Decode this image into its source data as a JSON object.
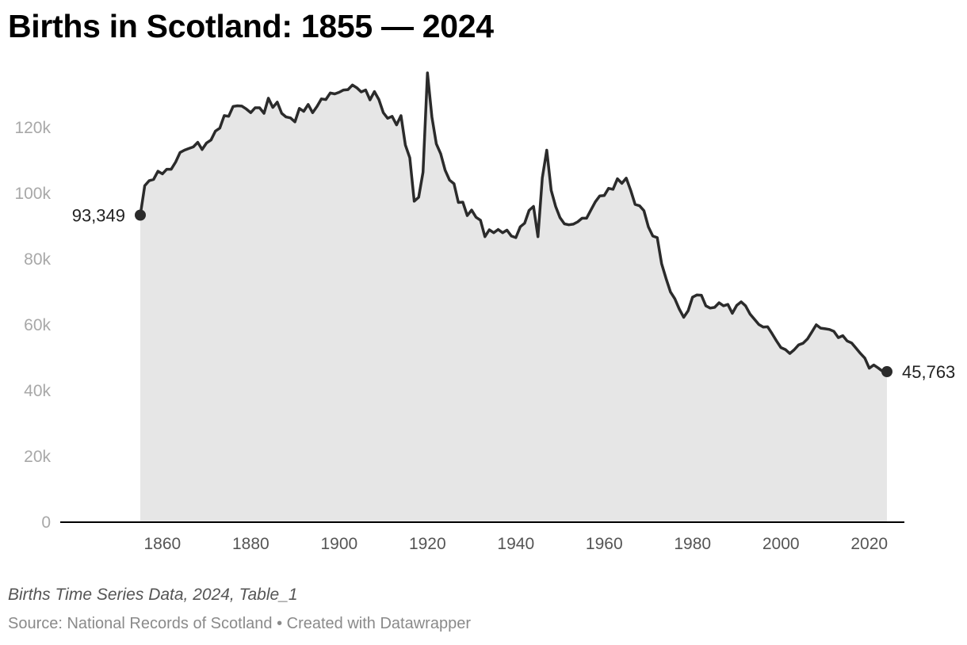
{
  "title": "Births in Scotland: 1855 — 2024",
  "notes": "Births Time Series Data, 2024, Table_1",
  "source": {
    "label": "Source: National Records of Scotland",
    "separator": " • ",
    "credit": "Created with Datawrapper"
  },
  "colors": {
    "line": "#2b2b2b",
    "area": "#e6e6e6",
    "axis": "#000000",
    "tick_y": "#a8a8a8",
    "tick_x": "#555555"
  },
  "chart_data": {
    "type": "area",
    "title": "Births in Scotland: 1855 — 2024",
    "xlabel": "",
    "ylabel": "",
    "xlim": [
      1855,
      2024
    ],
    "ylim": [
      0,
      130000
    ],
    "x_ticks": [
      1860,
      1880,
      1900,
      1920,
      1940,
      1960,
      1980,
      2000,
      2020
    ],
    "y_ticks": [
      {
        "value": 0,
        "label": "0"
      },
      {
        "value": 20000,
        "label": "20k"
      },
      {
        "value": 40000,
        "label": "40k"
      },
      {
        "value": 60000,
        "label": "60k"
      },
      {
        "value": 80000,
        "label": "80k"
      },
      {
        "value": 100000,
        "label": "100k"
      },
      {
        "value": 120000,
        "label": "120k"
      }
    ],
    "grid": false,
    "legend": "none",
    "annotations": [
      {
        "x": 1855,
        "y": 93349,
        "label": "93,349",
        "side": "left"
      },
      {
        "x": 2024,
        "y": 45763,
        "label": "45,763",
        "side": "right"
      }
    ],
    "series": [
      {
        "x": [
          1855,
          1856,
          1857,
          1858,
          1859,
          1860,
          1861,
          1862,
          1863,
          1864,
          1865,
          1866,
          1867,
          1868,
          1869,
          1870,
          1871,
          1872,
          1873,
          1874,
          1875,
          1876,
          1877,
          1878,
          1879,
          1880,
          1881,
          1882,
          1883,
          1884,
          1885,
          1886,
          1887,
          1888,
          1889,
          1890,
          1891,
          1892,
          1893,
          1894,
          1895,
          1896,
          1897,
          1898,
          1899,
          1900,
          1901,
          1902,
          1903,
          1904,
          1905,
          1906,
          1907,
          1908,
          1909,
          1910,
          1911,
          1912,
          1913,
          1914,
          1915,
          1916,
          1917,
          1918,
          1919,
          1920,
          1921,
          1922,
          1923,
          1924,
          1925,
          1926,
          1927,
          1928,
          1929,
          1930,
          1931,
          1932,
          1933,
          1934,
          1935,
          1936,
          1937,
          1938,
          1939,
          1940,
          1941,
          1942,
          1943,
          1944,
          1945,
          1946,
          1947,
          1948,
          1949,
          1950,
          1951,
          1952,
          1953,
          1954,
          1955,
          1956,
          1957,
          1958,
          1959,
          1960,
          1961,
          1962,
          1963,
          1964,
          1965,
          1966,
          1967,
          1968,
          1969,
          1970,
          1971,
          1972,
          1973,
          1974,
          1975,
          1976,
          1977,
          1978,
          1979,
          1980,
          1981,
          1982,
          1983,
          1984,
          1985,
          1986,
          1987,
          1988,
          1989,
          1990,
          1991,
          1992,
          1993,
          1994,
          1995,
          1996,
          1997,
          1998,
          1999,
          2000,
          2001,
          2002,
          2003,
          2004,
          2005,
          2006,
          2007,
          2008,
          2009,
          2010,
          2011,
          2012,
          2013,
          2014,
          2015,
          2016,
          2017,
          2018,
          2019,
          2020,
          2021,
          2022,
          2023,
          2024
        ],
        "values": [
          93349,
          102300,
          103800,
          104200,
          106700,
          105900,
          107300,
          107300,
          109500,
          112400,
          113100,
          113600,
          114100,
          115500,
          113300,
          115300,
          116200,
          118900,
          119800,
          123600,
          123400,
          126400,
          126600,
          126500,
          125600,
          124500,
          126000,
          126000,
          124300,
          128900,
          126100,
          127700,
          124300,
          123200,
          122900,
          121700,
          125800,
          124900,
          127000,
          124500,
          126400,
          128700,
          128500,
          130500,
          130200,
          130700,
          131400,
          131500,
          132900,
          132100,
          130800,
          131400,
          128400,
          130900,
          128500,
          124500,
          122800,
          123400,
          120800,
          123600,
          114700,
          110800,
          97600,
          98800,
          106400,
          136600,
          123200,
          115000,
          112000,
          107000,
          104000,
          102900,
          97200,
          97300,
          93200,
          94900,
          92700,
          91800,
          86800,
          88900,
          88000,
          89000,
          88000,
          88800,
          87000,
          86500,
          89800,
          90900,
          94800,
          96000,
          86800,
          104700,
          113100,
          100900,
          96000,
          92600,
          90700,
          90400,
          90600,
          91300,
          92400,
          92400,
          94900,
          97400,
          99200,
          99300,
          101500,
          101200,
          104400,
          103000,
          104600,
          100900,
          96600,
          96200,
          94700,
          89800,
          87000,
          86500,
          78600,
          74100,
          70000,
          67900,
          64800,
          62300,
          64300,
          68400,
          69100,
          69000,
          65800,
          65100,
          65300,
          66700,
          65800,
          66200,
          63500,
          65900,
          67000,
          65800,
          63300,
          61700,
          60100,
          59300,
          59400,
          57300,
          55100,
          53100,
          52500,
          51300,
          52400,
          53900,
          54400,
          55700,
          57800,
          60000,
          59000,
          58800,
          58600,
          58000,
          56100,
          56700,
          55100,
          54500,
          52900,
          51300,
          49900,
          46800,
          47800,
          46900,
          45900,
          45763
        ]
      }
    ]
  }
}
